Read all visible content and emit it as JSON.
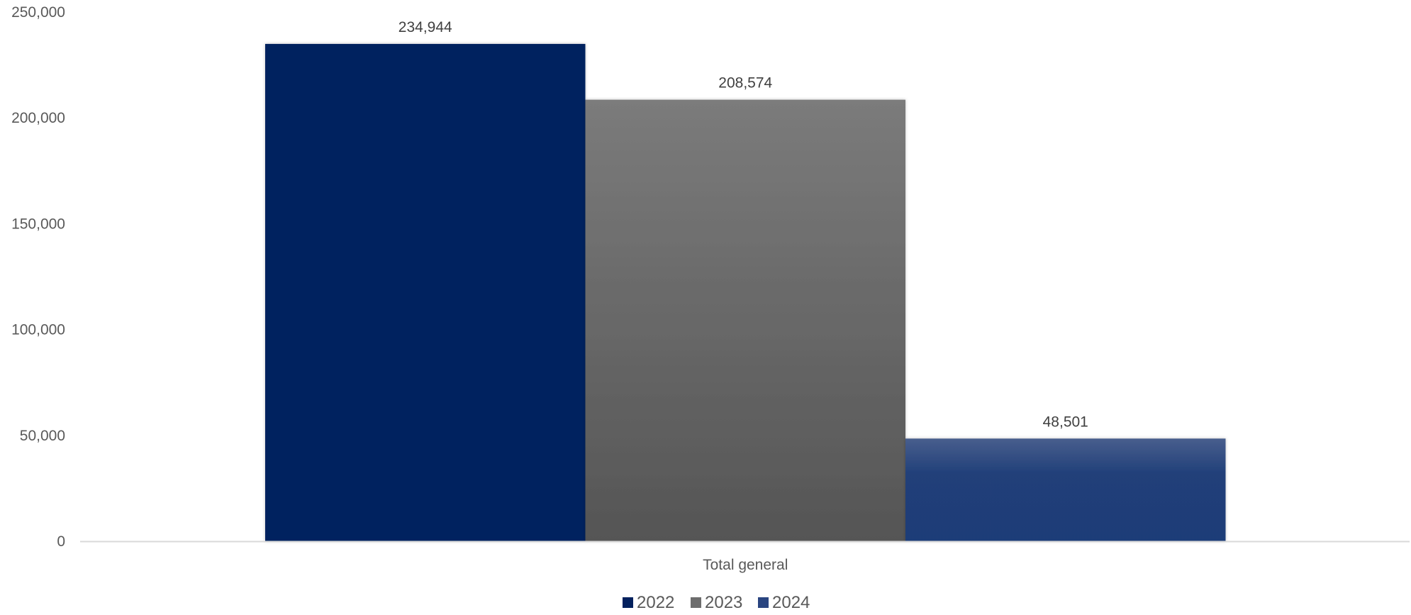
{
  "chart_data": {
    "type": "bar",
    "categories": [
      "Total general"
    ],
    "series": [
      {
        "name": "2022",
        "values": [
          234944
        ],
        "labels": [
          "234,944"
        ],
        "color": "#03215e"
      },
      {
        "name": "2023",
        "values": [
          208574
        ],
        "labels": [
          "208,574"
        ],
        "color": "#6d6d6d"
      },
      {
        "name": "2024",
        "values": [
          48501
        ],
        "labels": [
          "48,501"
        ],
        "color": "#2a4580"
      }
    ],
    "y_ticks": [
      {
        "value": 0,
        "label": "0"
      },
      {
        "value": 50000,
        "label": "50,000"
      },
      {
        "value": 100000,
        "label": "100,000"
      },
      {
        "value": 150000,
        "label": "150,000"
      },
      {
        "value": 200000,
        "label": "200,000"
      },
      {
        "value": 250000,
        "label": "250,000"
      }
    ],
    "ylim": [
      0,
      250000
    ],
    "title": "",
    "xlabel": "",
    "ylabel": "",
    "grid": false,
    "legend_position": "bottom"
  }
}
